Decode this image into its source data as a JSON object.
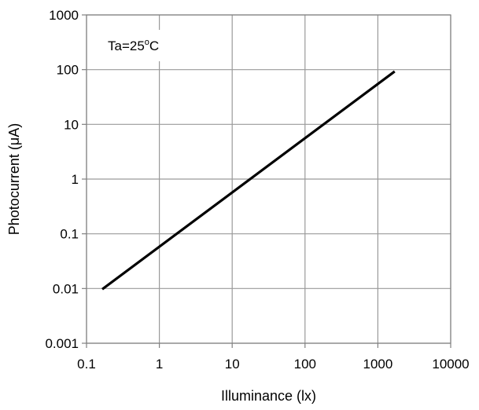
{
  "chart_data": {
    "type": "line",
    "xlabel": "Illuminance (lx)",
    "ylabel": "Photocurrent (μA)",
    "x_scale": "log",
    "y_scale": "log",
    "xlim": [
      0.1,
      10000
    ],
    "ylim": [
      0.001,
      1000
    ],
    "x_ticks": [
      "0.1",
      "1",
      "10",
      "100",
      "1000",
      "10000"
    ],
    "y_ticks": [
      "0.001",
      "0.01",
      "0.1",
      "1",
      "10",
      "100",
      "1000"
    ],
    "x_tick_values": [
      0.1,
      1,
      10,
      100,
      1000,
      10000
    ],
    "y_tick_values": [
      0.001,
      0.01,
      0.1,
      1,
      10,
      100,
      1000
    ],
    "grid": true,
    "line_color": "#000000",
    "grid_color": "#9a9a9a",
    "annotation": {
      "prefix": "Ta=25",
      "superscript": "o",
      "suffix": "C"
    },
    "series": [
      {
        "x": [
          0.17,
          1650
        ],
        "y": [
          0.01,
          90
        ]
      }
    ]
  }
}
